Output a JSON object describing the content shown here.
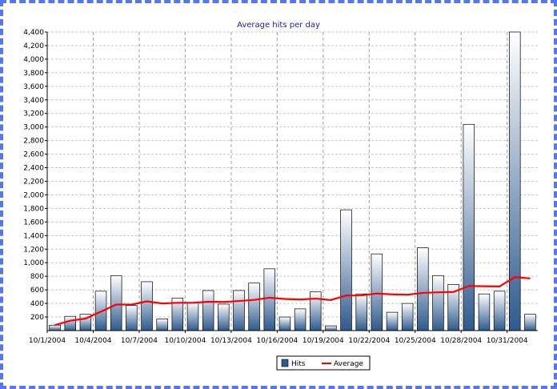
{
  "chart_data": {
    "type": "bar",
    "title": "Average hits per day",
    "xlabel": "",
    "ylabel": "",
    "ylim": [
      0,
      4400
    ],
    "yticks": [
      200,
      400,
      600,
      800,
      1000,
      1200,
      1400,
      1600,
      1800,
      2000,
      2200,
      2400,
      2600,
      2800,
      3000,
      3200,
      3400,
      3600,
      3800,
      4000,
      4200,
      4400
    ],
    "ytick_labels": [
      "200",
      "400",
      "600",
      "800",
      "1,000",
      "1,200",
      "1,400",
      "1,600",
      "1,800",
      "2,000",
      "2,200",
      "2,400",
      "2,600",
      "2,800",
      "3,000",
      "3,200",
      "3,400",
      "3,600",
      "3,800",
      "4,000",
      "4,200",
      "4,400"
    ],
    "categories": [
      "10/1/2004",
      "10/2/2004",
      "10/3/2004",
      "10/4/2004",
      "10/5/2004",
      "10/6/2004",
      "10/7/2004",
      "10/8/2004",
      "10/9/2004",
      "10/10/2004",
      "10/11/2004",
      "10/12/2004",
      "10/13/2004",
      "10/14/2004",
      "10/15/2004",
      "10/16/2004",
      "10/17/2004",
      "10/18/2004",
      "10/19/2004",
      "10/20/2004",
      "10/21/2004",
      "10/22/2004",
      "10/23/2004",
      "10/24/2004",
      "10/25/2004",
      "10/26/2004",
      "10/27/2004",
      "10/28/2004",
      "10/29/2004",
      "10/30/2004",
      "10/31/2004",
      "11/1/2004"
    ],
    "xtick_labels": [
      "10/1/2004",
      "10/4/2004",
      "10/7/2004",
      "10/10/2004",
      "10/13/2004",
      "10/16/2004",
      "10/19/2004",
      "10/22/2004",
      "10/25/2004",
      "10/28/2004",
      "10/31/2004"
    ],
    "grid": true,
    "legend_position": "bottom",
    "series": [
      {
        "name": "Hits",
        "type": "bar",
        "color": "#2e5a8e",
        "values": [
          80,
          210,
          240,
          580,
          810,
          370,
          720,
          170,
          480,
          410,
          590,
          390,
          590,
          700,
          910,
          200,
          320,
          570,
          70,
          1780,
          540,
          1130,
          270,
          400,
          1220,
          810,
          680,
          3040,
          540,
          580,
          4560,
          240
        ]
      },
      {
        "name": "Average",
        "type": "line",
        "color": "#ff0000",
        "values": [
          80,
          145,
          177,
          278,
          384,
          382,
          430,
          400,
          409,
          409,
          425,
          422,
          436,
          452,
          484,
          466,
          457,
          471,
          450,
          517,
          518,
          546,
          534,
          528,
          555,
          564,
          569,
          657,
          653,
          650,
          787,
          769
        ]
      }
    ]
  }
}
